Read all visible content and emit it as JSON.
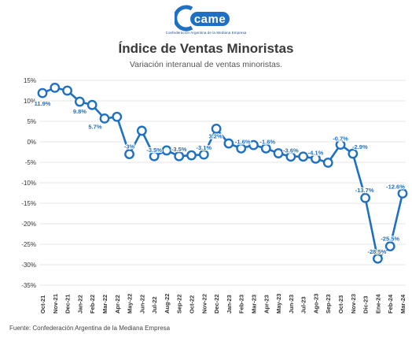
{
  "header": {
    "logo_text": "came",
    "logo_caption": "Confederación Argentina de la Mediana Empresa",
    "title": "Índice de Ventas Minoristas",
    "subtitle": "Variación interanual de ventas minoristas."
  },
  "footer": {
    "source": "Fuente: Confederación Argentina de la Mediana Empresa"
  },
  "colors": {
    "line": "#1f70c1",
    "label": "#1f70c1",
    "grid": "#e6e6e6",
    "axis_text": "#333333"
  },
  "chart_data": {
    "type": "line",
    "title": "Índice de Ventas Minoristas",
    "subtitle": "Variación interanual de ventas minoristas.",
    "xlabel": "",
    "ylabel": "",
    "ylim": [
      -35,
      15
    ],
    "yticks": [
      15,
      10,
      5,
      0,
      -5,
      -10,
      -15,
      -20,
      -25,
      -30,
      -35
    ],
    "ytick_labels": [
      "15%",
      "10%",
      "5%",
      "0%",
      "-5%",
      "-10%",
      "-15%",
      "-20%",
      "-25%",
      "-30%",
      "-35%"
    ],
    "grid": true,
    "legend": "none",
    "categories": [
      "Oct-21",
      "Nov-21",
      "Dec-21",
      "Jan-22",
      "Feb-22",
      "Mar-22",
      "Apr-22",
      "May-22",
      "Jun-22",
      "Jul-22",
      "Aug-22",
      "Sep-22",
      "Oct-22",
      "Nov-22",
      "Dec-22",
      "Jan-23",
      "Feb-23",
      "Mar-23",
      "Apr-23",
      "May-23",
      "Jun-23",
      "Jul-23",
      "Ago-23",
      "Sep-23",
      "Oct-23",
      "Nov-23",
      "Dic-23",
      "Ene-24",
      "Feb-24",
      "Mar-24"
    ],
    "x_tick_labels": [
      "Oct-21",
      "Nov-21",
      "Dec-21",
      "Jan-22",
      "Feb-22",
      "Mar-22",
      "Apr-22",
      "May-22",
      "Jun-22",
      "Jul-22",
      "Aug-22",
      "Sep-22",
      "Oct-22",
      "Nov-22",
      "Dec-22",
      "Jan-23",
      "Feb-23",
      "Mar-23",
      "Apr-23",
      "May-23",
      "Jun-23",
      "Jul-23",
      "Ago-23",
      "Sep-23",
      "Oct-23",
      "Nov-23",
      "Dic-23",
      "Ene-24",
      "Feb-24",
      "Mar-24"
    ],
    "series": [
      {
        "values": [
          11.9,
          13.2,
          12.5,
          9.8,
          9.0,
          5.7,
          6.1,
          -3.0,
          2.7,
          -3.5,
          -2.1,
          -3.5,
          -3.3,
          -3.1,
          3.2,
          -0.4,
          -1.6,
          -0.8,
          -1.6,
          -2.8,
          -3.6,
          -3.6,
          -4.1,
          -5.1,
          -0.7,
          -2.9,
          -13.7,
          -28.5,
          -25.5,
          -12.6
        ]
      }
    ],
    "data_labels": [
      {
        "index": 0,
        "text": "11.9%"
      },
      {
        "index": 3,
        "text": "9.8%"
      },
      {
        "index": 5,
        "text": "5.7%"
      },
      {
        "index": 7,
        "text": "-3%"
      },
      {
        "index": 9,
        "text": "-3.5%"
      },
      {
        "index": 11,
        "text": "-3.5%"
      },
      {
        "index": 13,
        "text": "-3.1%"
      },
      {
        "index": 14,
        "text": "3.2%"
      },
      {
        "index": 16,
        "text": "-1.6%"
      },
      {
        "index": 18,
        "text": "-1.6%"
      },
      {
        "index": 20,
        "text": "-3.6%"
      },
      {
        "index": 22,
        "text": "-4.1%"
      },
      {
        "index": 24,
        "text": "-0.7%"
      },
      {
        "index": 25,
        "text": "-2.9%"
      },
      {
        "index": 26,
        "text": "-13.7%"
      },
      {
        "index": 27,
        "text": "-28.5%"
      },
      {
        "index": 28,
        "text": "-25.5%"
      },
      {
        "index": 29,
        "text": "-12.6%"
      }
    ]
  }
}
